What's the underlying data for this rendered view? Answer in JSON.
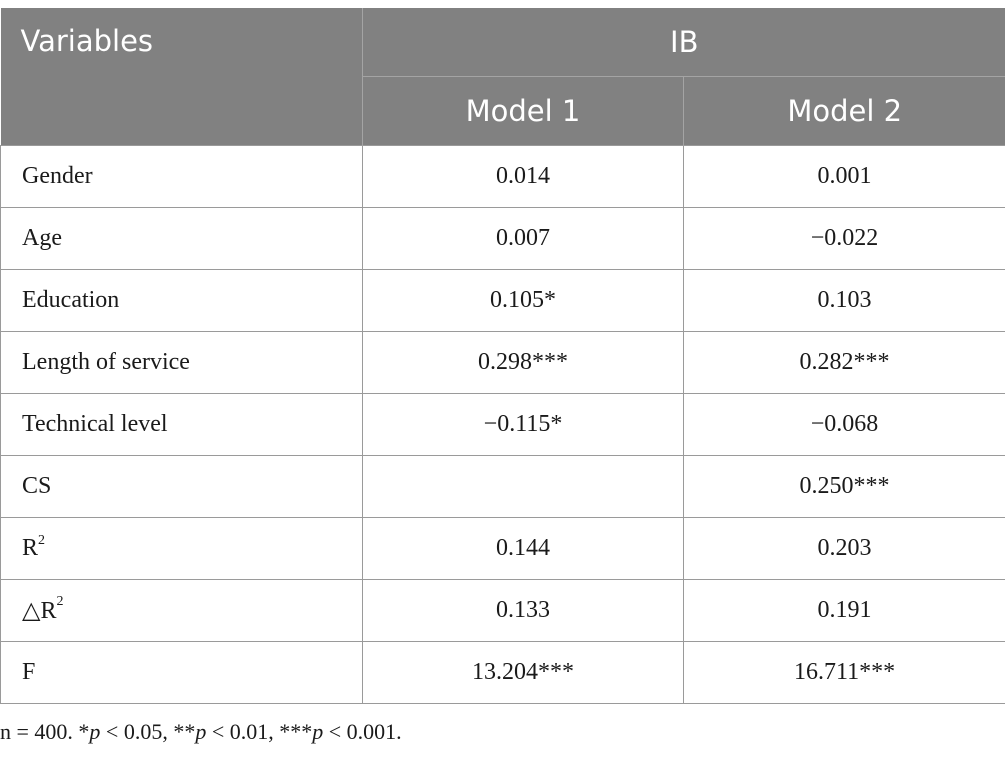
{
  "table": {
    "header": {
      "variables": "Variables",
      "group": "IB",
      "model1": "Model 1",
      "model2": "Model 2"
    },
    "rows": [
      {
        "label": "Gender",
        "m1": "0.014",
        "m2": "0.001"
      },
      {
        "label": "Age",
        "m1": "0.007",
        "m2": "−0.022"
      },
      {
        "label": "Education",
        "m1": "0.105*",
        "m2": "0.103"
      },
      {
        "label": "Length of service",
        "m1": "0.298***",
        "m2": "0.282***"
      },
      {
        "label": "Technical level",
        "m1": "−0.115*",
        "m2": "−0.068"
      },
      {
        "label": "CS",
        "m1": "",
        "m2": "0.250***"
      },
      {
        "label": "R",
        "label_sup": "2",
        "m1": "0.144",
        "m2": "0.203"
      },
      {
        "label": "△R",
        "label_sup": "2",
        "m1": "0.133",
        "m2": "0.191"
      },
      {
        "label": "F",
        "m1": "13.204***",
        "m2": "16.711***"
      }
    ]
  },
  "note": {
    "n": "n = 400. *",
    "p1": "p",
    "t1": " < 0.05, **",
    "p2": "p",
    "t2": " < 0.01, ***",
    "p3": "p",
    "t3": " < 0.001."
  }
}
